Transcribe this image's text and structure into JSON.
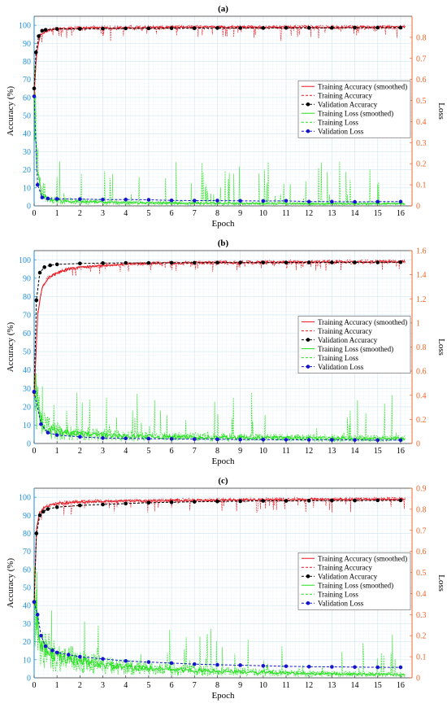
{
  "colors": {
    "accuracy_smoothed": "#e8141e",
    "accuracy_raw": "#e8141e",
    "validation_accuracy": "#000000",
    "loss_smoothed": "#22e01a",
    "loss_raw": "#22e01a",
    "validation_loss": "#1515cc",
    "left_axis": "#1f8fd6",
    "right_axis": "#f06428",
    "grid_major": "#d7e9f3",
    "grid_minor": "#eef6fa"
  },
  "chart_data": [
    {
      "type": "line",
      "title": "(a)",
      "xlabel": "Epoch",
      "ylabel": "Accuracy (%)",
      "y2label": "Loss",
      "xlim": [
        0,
        16.5
      ],
      "ylim": [
        0,
        105
      ],
      "y2lim": [
        0,
        0.9
      ],
      "xticks": [
        0,
        1,
        2,
        3,
        4,
        5,
        6,
        7,
        8,
        9,
        10,
        11,
        12,
        13,
        14,
        15,
        16
      ],
      "yticks": [
        0,
        10,
        20,
        30,
        40,
        50,
        60,
        70,
        80,
        90,
        100
      ],
      "y2ticks": [
        0,
        0.1,
        0.2,
        0.3,
        0.4,
        0.5,
        0.6,
        0.7,
        0.8
      ],
      "grid": true,
      "legend_position": "middle-right",
      "legend": [
        "Training Accuracy (smoothed)",
        "Training Accuracy",
        "Validation Accuracy",
        "Training Loss (smoothed)",
        "Training Loss",
        "Validation Loss"
      ],
      "series": [
        {
          "name": "Validation Accuracy",
          "axis": "left",
          "x": [
            0,
            0.08,
            0.2,
            0.35,
            0.5,
            1,
            2,
            3,
            4,
            5,
            6,
            7,
            8,
            9,
            10,
            11,
            12,
            13,
            14,
            15,
            16
          ],
          "y": [
            65,
            85,
            94,
            97,
            97.5,
            98,
            98,
            98.2,
            98.3,
            98.3,
            98.4,
            98.4,
            98.5,
            98.5,
            98.5,
            98.6,
            98.6,
            98.6,
            98.7,
            98.7,
            98.7
          ]
        },
        {
          "name": "Training Accuracy (smoothed)",
          "axis": "left",
          "x": [
            0,
            0.1,
            0.25,
            0.5,
            1,
            2,
            4,
            8,
            12,
            16.2
          ],
          "y": [
            60,
            84,
            94,
            97,
            98,
            98.5,
            98.7,
            99,
            99,
            99
          ]
        },
        {
          "name": "Validation Loss",
          "axis": "right",
          "x": [
            0,
            0.15,
            0.35,
            0.6,
            1,
            2,
            3,
            4,
            5,
            6,
            7,
            8,
            9,
            10,
            11,
            12,
            13,
            14,
            15,
            16
          ],
          "y": [
            0.52,
            0.1,
            0.04,
            0.035,
            0.033,
            0.032,
            0.03,
            0.03,
            0.029,
            0.026,
            0.025,
            0.025,
            0.024,
            0.023,
            0.024,
            0.02,
            0.02,
            0.019,
            0.02,
            0.02
          ]
        },
        {
          "name": "Training Loss (smoothed)",
          "axis": "right",
          "x": [
            0,
            0.15,
            0.3,
            0.6,
            1,
            2,
            4,
            8,
            12,
            16.2
          ],
          "y": [
            0.55,
            0.15,
            0.06,
            0.03,
            0.025,
            0.02,
            0.015,
            0.012,
            0.01,
            0.01
          ]
        }
      ]
    },
    {
      "type": "line",
      "title": "(b)",
      "xlabel": "Epoch",
      "ylabel": "Accuracy (%)",
      "y2label": "Loss",
      "xlim": [
        0,
        16.5
      ],
      "ylim": [
        0,
        105
      ],
      "y2lim": [
        0,
        1.6
      ],
      "xticks": [
        0,
        1,
        2,
        3,
        4,
        5,
        6,
        7,
        8,
        9,
        10,
        11,
        12,
        13,
        14,
        15,
        16
      ],
      "yticks": [
        0,
        10,
        20,
        30,
        40,
        50,
        60,
        70,
        80,
        90,
        100
      ],
      "y2ticks": [
        0,
        0.2,
        0.4,
        0.6,
        0.8,
        1,
        1.2,
        1.4,
        1.6
      ],
      "grid": true,
      "legend_position": "middle-right",
      "legend": [
        "Training Accuracy (smoothed)",
        "Training Accuracy",
        "Validation Accuracy",
        "Training Loss (smoothed)",
        "Training Loss",
        "Validation Loss"
      ],
      "series": [
        {
          "name": "Validation Accuracy",
          "axis": "left",
          "x": [
            0,
            0.1,
            0.25,
            0.45,
            0.7,
            1,
            2,
            3,
            4,
            5,
            6,
            7,
            8,
            9,
            10,
            11,
            12,
            13,
            14,
            15,
            16
          ],
          "y": [
            28,
            78,
            93,
            96,
            97,
            97.5,
            98,
            98.2,
            98.3,
            98.3,
            98.4,
            98.4,
            98.5,
            98.5,
            98.5,
            98.5,
            98.6,
            98.6,
            98.6,
            98.6,
            98.7
          ]
        },
        {
          "name": "Training Accuracy (smoothed)",
          "axis": "left",
          "x": [
            0,
            0.15,
            0.35,
            0.6,
            1,
            1.5,
            2,
            3,
            4,
            6,
            8,
            12,
            16.2
          ],
          "y": [
            25,
            70,
            85,
            90,
            93,
            95,
            96,
            97,
            97.8,
            98.2,
            98.5,
            98.8,
            99
          ]
        },
        {
          "name": "Validation Loss",
          "axis": "right",
          "x": [
            0,
            0.3,
            0.6,
            1,
            2,
            3,
            4,
            5,
            6,
            7,
            8,
            9,
            10,
            11,
            12,
            13,
            14,
            15,
            16
          ],
          "y": [
            0.43,
            0.16,
            0.09,
            0.07,
            0.055,
            0.045,
            0.042,
            0.04,
            0.038,
            0.036,
            0.035,
            0.033,
            0.032,
            0.031,
            0.03,
            0.03,
            0.029,
            0.028,
            0.028
          ]
        },
        {
          "name": "Training Loss (smoothed)",
          "axis": "right",
          "x": [
            0,
            0.2,
            0.4,
            0.7,
            1,
            2,
            4,
            8,
            12,
            16.2
          ],
          "y": [
            0.5,
            0.25,
            0.15,
            0.12,
            0.1,
            0.08,
            0.06,
            0.05,
            0.045,
            0.04
          ]
        }
      ]
    },
    {
      "type": "line",
      "title": "(c)",
      "xlabel": "Epoch",
      "ylabel": "Accuracy (%)",
      "y2label": "Loss",
      "xlim": [
        0,
        16.5
      ],
      "ylim": [
        0,
        105
      ],
      "y2lim": [
        0,
        0.9
      ],
      "xticks": [
        0,
        1,
        2,
        3,
        4,
        5,
        6,
        7,
        8,
        9,
        10,
        11,
        12,
        13,
        14,
        15,
        16
      ],
      "yticks": [
        0,
        10,
        20,
        30,
        40,
        50,
        60,
        70,
        80,
        90,
        100
      ],
      "y2ticks": [
        0,
        0.1,
        0.2,
        0.3,
        0.4,
        0.5,
        0.6,
        0.7,
        0.8,
        0.9
      ],
      "grid": true,
      "legend_position": "middle-right",
      "legend": [
        "Training Accuracy (smoothed)",
        "Training Accuracy",
        "Validation Accuracy",
        "Training Loss (smoothed)",
        "Training Loss",
        "Validation Loss"
      ],
      "series": [
        {
          "name": "Validation Accuracy",
          "axis": "left",
          "x": [
            0,
            0.1,
            0.25,
            0.4,
            0.6,
            1,
            2,
            3,
            4,
            5,
            6,
            7,
            8,
            9,
            10,
            11,
            12,
            13,
            14,
            15,
            16
          ],
          "y": [
            42,
            80,
            90,
            92,
            93.5,
            94.5,
            95.5,
            96,
            96.5,
            97,
            97.2,
            97.5,
            97.7,
            97.8,
            98,
            98,
            98.1,
            98.2,
            98.2,
            98.3,
            98.3
          ]
        },
        {
          "name": "Training Accuracy (smoothed)",
          "axis": "left",
          "x": [
            0,
            0.1,
            0.25,
            0.5,
            1,
            2,
            4,
            8,
            12,
            16.2
          ],
          "y": [
            40,
            82,
            92,
            95,
            96.5,
            97.5,
            98,
            98.5,
            98.8,
            99
          ]
        },
        {
          "name": "Validation Loss",
          "axis": "right",
          "x": [
            0,
            0.15,
            0.3,
            0.5,
            0.8,
            1,
            1.5,
            2,
            3,
            4,
            5,
            6,
            7,
            8,
            9,
            10,
            11,
            12,
            13,
            14,
            15,
            16
          ],
          "y": [
            0.36,
            0.3,
            0.2,
            0.15,
            0.13,
            0.12,
            0.11,
            0.1,
            0.09,
            0.08,
            0.075,
            0.07,
            0.065,
            0.062,
            0.06,
            0.057,
            0.055,
            0.053,
            0.052,
            0.051,
            0.05,
            0.05
          ]
        },
        {
          "name": "Training Loss (smoothed)",
          "axis": "right",
          "x": [
            0,
            0.2,
            0.4,
            0.7,
            1,
            2,
            3,
            4,
            6,
            8,
            12,
            16.2
          ],
          "y": [
            0.45,
            0.2,
            0.15,
            0.12,
            0.1,
            0.08,
            0.06,
            0.05,
            0.04,
            0.03,
            0.02,
            0.015
          ]
        }
      ]
    }
  ]
}
